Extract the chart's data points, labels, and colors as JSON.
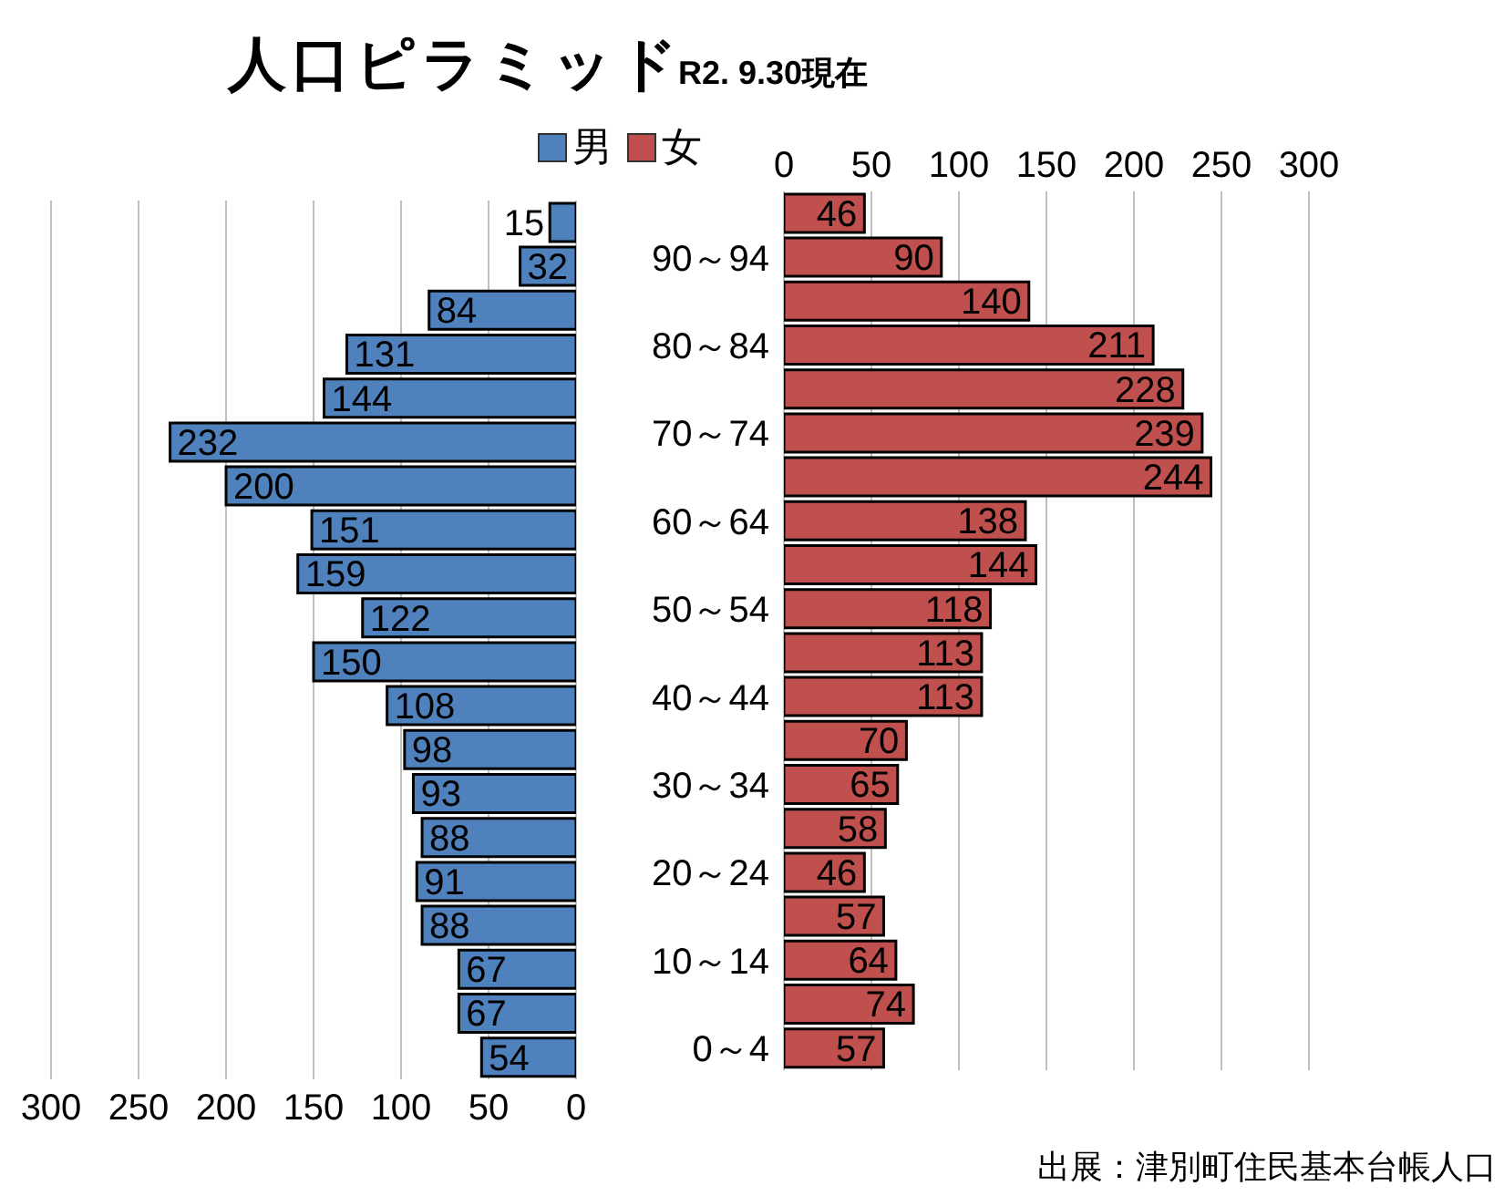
{
  "chart_data": {
    "type": "bar",
    "orientation": "horizontal",
    "title": "人口ピラミッド",
    "subtitle": "R2. 9.30現在",
    "categories": [
      null,
      "90～94",
      null,
      "80～84",
      null,
      "70～74",
      null,
      "60～64",
      null,
      "50～54",
      null,
      "40～44",
      null,
      "30～34",
      null,
      "20～24",
      null,
      "10～14",
      null,
      "0～4"
    ],
    "series": [
      {
        "name": "男",
        "color": "#4f81bd",
        "values": [
          15,
          32,
          84,
          131,
          144,
          232,
          200,
          151,
          159,
          122,
          150,
          108,
          98,
          93,
          88,
          91,
          88,
          67,
          67,
          54
        ]
      },
      {
        "name": "女",
        "color": "#c0504d",
        "axis": "x2",
        "values": [
          46,
          90,
          140,
          211,
          228,
          239,
          244,
          138,
          144,
          118,
          113,
          113,
          70,
          65,
          58,
          46,
          57,
          64,
          74,
          57
        ]
      }
    ],
    "xlim": [
      300,
      0
    ],
    "xticks": [
      300,
      250,
      200,
      150,
      100,
      50,
      0
    ],
    "x2lim": [
      0,
      300
    ],
    "x2ticks": [
      0,
      50,
      100,
      150,
      200,
      250,
      300
    ],
    "grid": "x",
    "legend": "top",
    "data_labels": true,
    "annotations": [
      "出展：津別町住民基本台帳人口"
    ]
  }
}
